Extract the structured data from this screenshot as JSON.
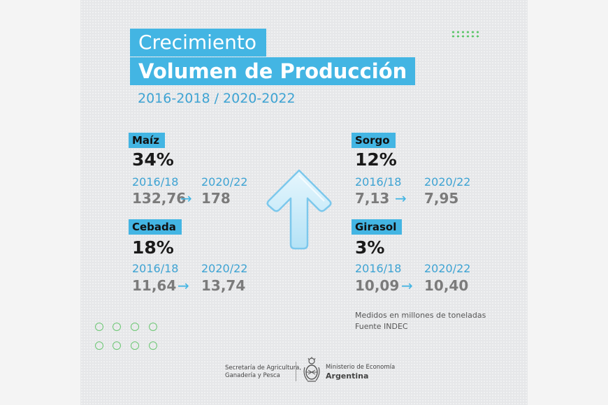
{
  "header": {
    "title_line1": "Crecimiento",
    "title_line2": "Volumen de Producción",
    "period": "2016-2018 / 2020-2022"
  },
  "crops": [
    {
      "name": "Maíz",
      "growth": "34%",
      "year_from": "2016/18",
      "year_to": "2020/22",
      "value_from": "132,76",
      "value_to": "178"
    },
    {
      "name": "Cebada",
      "growth": "18%",
      "year_from": "2016/18",
      "year_to": "2020/22",
      "value_from": "11,64",
      "value_to": "13,74"
    },
    {
      "name": "Sorgo",
      "growth": "12%",
      "year_from": "2016/18",
      "year_to": "2020/22",
      "value_from": "7,13",
      "value_to": "7,95"
    },
    {
      "name": "Girasol",
      "growth": "3%",
      "year_from": "2016/18",
      "year_to": "2020/22",
      "value_from": "10,09",
      "value_to": "10,40"
    }
  ],
  "arrow_glyph": "→",
  "notes": {
    "units": "Medidos en millones de toneladas",
    "source": "Fuente INDEC"
  },
  "footer": {
    "left_line1": "Secretaría de Agricultura,",
    "left_line2": "Ganadería y Pesca",
    "right_line1": "Ministerio de Economía",
    "right_line2": "Argentina"
  },
  "colors": {
    "accent": "#43b5e3",
    "background": "#e6e7e9",
    "decor_green": "#5cc66a",
    "value_gray": "#7b7b7b"
  },
  "icons": {
    "center": "up-arrow-icon",
    "emblem": "argentina-coat-of-arms-icon"
  }
}
